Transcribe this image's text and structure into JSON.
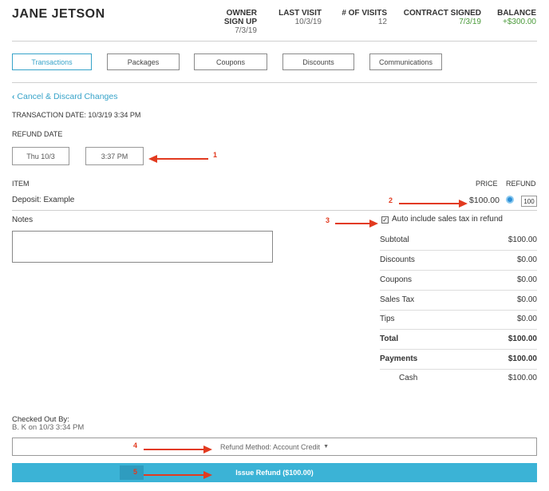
{
  "customer": {
    "name": "JANE JETSON"
  },
  "stats": {
    "owner_signup": {
      "label1": "OWNER",
      "label2": "SIGN UP",
      "value": "7/3/19"
    },
    "last_visit": {
      "label": "LAST VISIT",
      "value": "10/3/19"
    },
    "num_visits": {
      "label": "# OF VISITS",
      "value": "12"
    },
    "contract_signed": {
      "label": "CONTRACT SIGNED",
      "value": "7/3/19"
    },
    "balance": {
      "label": "BALANCE",
      "value": "+$300.00"
    }
  },
  "tabs": [
    {
      "label": "Transactions",
      "active": true
    },
    {
      "label": "Packages"
    },
    {
      "label": "Coupons"
    },
    {
      "label": "Discounts"
    },
    {
      "label": "Communications"
    }
  ],
  "cancel_link": "Cancel & Discard Changes",
  "transaction_date": "TRANSACTION DATE: 10/3/19 3:34 PM",
  "refund_date": {
    "label": "REFUND DATE",
    "date": "Thu 10/3",
    "time": "3:37 PM"
  },
  "items": {
    "item_header": "ITEM",
    "price_header": "PRICE",
    "refund_header": "REFUND",
    "rows": [
      {
        "name": "Deposit: Example",
        "price": "$100.00",
        "refund_value": "100"
      }
    ]
  },
  "notes": {
    "label": "Notes",
    "value": ""
  },
  "tax": {
    "label": "Auto include sales tax in refund",
    "checked": true
  },
  "summary": [
    {
      "label": "Subtotal",
      "value": "$100.00",
      "bold": false
    },
    {
      "label": "Discounts",
      "value": "$0.00",
      "bold": false
    },
    {
      "label": "Coupons",
      "value": "$0.00",
      "bold": false
    },
    {
      "label": "Sales Tax",
      "value": "$0.00",
      "bold": false
    },
    {
      "label": "Tips",
      "value": "$0.00",
      "bold": false
    },
    {
      "label": "Total",
      "value": "$100.00",
      "bold": true
    },
    {
      "label": "Payments",
      "value": "$100.00",
      "bold": true
    },
    {
      "label": "Cash",
      "value": "$100.00",
      "bold": false
    }
  ],
  "checked_out": {
    "label": "Checked Out By:",
    "value": "B. K on 10/3 3:34 PM"
  },
  "refund_method": "Refund Method: Account Credit",
  "issue_button": "Issue Refund ($100.00)",
  "annotations": [
    "1",
    "2",
    "3",
    "4",
    "5"
  ],
  "colors": {
    "accent": "#37a3c9",
    "positive": "#4a9a3a",
    "annotation": "#e23a1f",
    "button": "#3bb3d6"
  }
}
